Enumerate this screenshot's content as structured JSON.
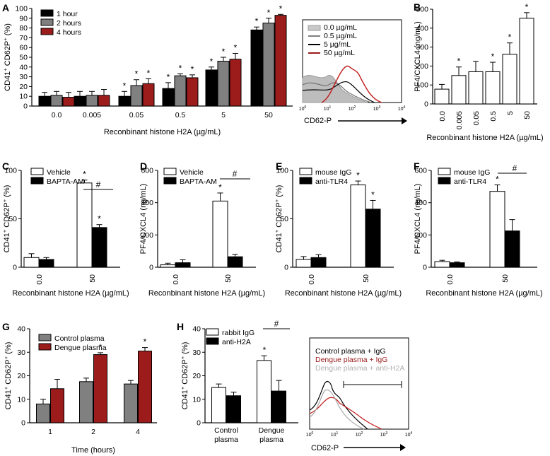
{
  "colors": {
    "black": "#000000",
    "gray": "#808080",
    "red": "#9c1b1b",
    "white": "#ffffff",
    "lightgray": "#b0b0b0"
  },
  "chart_data": [
    {
      "panel": "A",
      "type": "bar",
      "ylabel": "CD41+ CD62P+ (%)",
      "xlabel": "Reconbinant histone H2A (µg/mL)",
      "ylim": [
        0,
        100
      ],
      "yticks": [
        "0",
        "10",
        "20",
        "30",
        "40",
        "50",
        "60",
        "70",
        "80",
        "90",
        "100"
      ],
      "categories": [
        "0.0",
        "0.005",
        "0.05",
        "0.5",
        "5",
        "50"
      ],
      "series": [
        {
          "name": "1 hour",
          "color": "black",
          "values": [
            10,
            10,
            10,
            18,
            37,
            78
          ],
          "errors": [
            4,
            5,
            5,
            6,
            3,
            3
          ]
        },
        {
          "name": "2 hours",
          "color": "gray",
          "values": [
            11,
            11,
            21,
            31,
            46,
            85
          ],
          "errors": [
            4,
            4,
            6,
            2,
            4,
            5
          ]
        },
        {
          "name": "4 hours",
          "color": "red",
          "values": [
            9,
            11,
            23,
            29,
            48,
            93
          ],
          "errors": [
            5,
            6,
            5,
            3,
            6,
            1
          ]
        }
      ],
      "significance": [
        "",
        "",
        "*",
        "*",
        "*",
        "*"
      ],
      "legend_position": "top-left"
    },
    {
      "panel": "A-inset",
      "type": "histogram-overlay",
      "xlabel": "CD62-P",
      "xticks": [
        "10^0",
        "10^1",
        "10^2",
        "10^3",
        "10^4"
      ],
      "series": [
        {
          "name": "0.0 µg/mL",
          "color": "lightgray"
        },
        {
          "name": "0.5 µg/mL",
          "color": "gray"
        },
        {
          "name": "5 µg/mL",
          "color": "black"
        },
        {
          "name": "50 µg/mL",
          "color": "red"
        }
      ]
    },
    {
      "panel": "B",
      "type": "bar",
      "ylabel": "PF4/CXCL4 (ng/mL)",
      "xlabel": "Reconbinant histone H2A (µg/mL)",
      "ylim": [
        0,
        500
      ],
      "yticks": [
        "0",
        "100",
        "200",
        "300",
        "400",
        "500"
      ],
      "categories": [
        "0.0",
        "0.005",
        "0.05",
        "0.5",
        "5",
        "50"
      ],
      "series": [
        {
          "name": "",
          "color": "white",
          "values": [
            78,
            150,
            170,
            170,
            262,
            452
          ],
          "errors": [
            25,
            45,
            55,
            50,
            60,
            30
          ]
        }
      ],
      "significance": [
        "",
        "*",
        "",
        "*",
        "*",
        "*"
      ]
    },
    {
      "panel": "C",
      "type": "bar",
      "ylabel": "CD41+ CD62P+ (%)",
      "xlabel": "Reconbinant histone H2A (µg/mL)",
      "ylim": [
        0,
        100
      ],
      "yticks": [
        "0",
        "50",
        "100"
      ],
      "categories": [
        "0.0",
        "50"
      ],
      "series": [
        {
          "name": "Vehicle",
          "color": "white",
          "values": [
            10,
            87
          ],
          "errors": [
            4,
            3
          ]
        },
        {
          "name": "BAPTA-AM",
          "color": "black",
          "values": [
            8,
            41
          ],
          "errors": [
            2,
            3
          ]
        }
      ],
      "significance_labels": [
        "*",
        "*",
        "#"
      ]
    },
    {
      "panel": "D",
      "type": "bar",
      "ylabel": "PF4/CXCL4 (ng/mL)",
      "xlabel": "Reconbinant histone H2A (µg/mL)",
      "ylim": [
        0,
        600
      ],
      "yticks": [
        "0",
        "200",
        "400",
        "600"
      ],
      "categories": [
        "0.0",
        "50"
      ],
      "series": [
        {
          "name": "Vehicle",
          "color": "white",
          "values": [
            15,
            410
          ],
          "errors": [
            10,
            50
          ]
        },
        {
          "name": "BAPTA-AM",
          "color": "black",
          "values": [
            28,
            65
          ],
          "errors": [
            18,
            15
          ]
        }
      ],
      "significance_labels": [
        "*",
        "#"
      ]
    },
    {
      "panel": "E",
      "type": "bar",
      "ylabel": "CD41+ CD62P+ (%)",
      "xlabel": "Reconbinant histone H2A (µg/mL)",
      "ylim": [
        0,
        100
      ],
      "yticks": [
        "0",
        "50",
        "100"
      ],
      "categories": [
        "0.0",
        "50"
      ],
      "series": [
        {
          "name": "mouse IgG",
          "color": "white",
          "values": [
            8,
            85
          ],
          "errors": [
            3,
            4
          ]
        },
        {
          "name": "anti-TLR4",
          "color": "black",
          "values": [
            10,
            60
          ],
          "errors": [
            3,
            9
          ]
        }
      ],
      "significance_labels": [
        "*",
        "*"
      ]
    },
    {
      "panel": "F",
      "type": "bar",
      "ylabel": "PF4/CXCL4 (ng/mL)",
      "xlabel": "Reconbinant histone H2A (µg/mL)",
      "ylim": [
        0,
        600
      ],
      "yticks": [
        "0",
        "200",
        "400",
        "600"
      ],
      "categories": [
        "0.0",
        "50"
      ],
      "series": [
        {
          "name": "mouse IgG",
          "color": "white",
          "values": [
            35,
            470
          ],
          "errors": [
            8,
            40
          ]
        },
        {
          "name": "anti-TLR4",
          "color": "black",
          "values": [
            28,
            225
          ],
          "errors": [
            5,
            70
          ]
        }
      ],
      "significance_labels": [
        "*",
        "#"
      ]
    },
    {
      "panel": "G",
      "type": "bar",
      "ylabel": "CD41+ CD62P+ (%)",
      "xlabel": "Time (hours)",
      "ylim": [
        0,
        40
      ],
      "yticks": [
        "0",
        "10",
        "20",
        "30",
        "40"
      ],
      "categories": [
        "1",
        "2",
        "4"
      ],
      "series": [
        {
          "name": "Control plasma",
          "color": "gray",
          "values": [
            8,
            17.5,
            16.5
          ],
          "errors": [
            2,
            1.5,
            1.5
          ]
        },
        {
          "name": "Dengue plasma",
          "color": "red",
          "values": [
            14.5,
            29,
            30.5
          ],
          "errors": [
            4,
            0.8,
            1.5
          ]
        }
      ],
      "significance_labels": [
        "*",
        "*"
      ]
    },
    {
      "panel": "H",
      "type": "bar",
      "ylabel": "CD41+ CD62P+ (%)",
      "xlabel": "",
      "ylim": [
        0,
        40
      ],
      "yticks": [
        "0",
        "10",
        "20",
        "30",
        "40"
      ],
      "categories": [
        "Control plasma",
        "Dengue plasma"
      ],
      "series": [
        {
          "name": "rabbit IgG",
          "color": "white",
          "values": [
            15,
            26.5
          ],
          "errors": [
            1.5,
            2
          ]
        },
        {
          "name": "anti-H2A",
          "color": "black",
          "values": [
            11.5,
            13.5
          ],
          "errors": [
            1.5,
            4.5
          ]
        }
      ],
      "significance_labels": [
        "*",
        "#"
      ]
    },
    {
      "panel": "H-inset",
      "type": "histogram-overlay",
      "xlabel": "CD62-P",
      "xticks": [
        "10^0",
        "10^1",
        "10^2",
        "10^3",
        "10^4"
      ],
      "series": [
        {
          "name": "Control plasma + IgG",
          "color": "black"
        },
        {
          "name": "Dengue plasma + IgG",
          "color": "red"
        },
        {
          "name": "Dengue plasma + anti-H2A",
          "color": "lightgray"
        }
      ]
    }
  ]
}
